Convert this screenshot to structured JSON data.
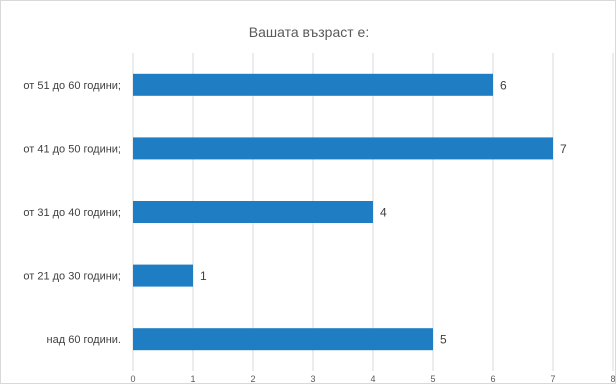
{
  "chart_data": {
    "type": "bar",
    "orientation": "horizontal",
    "title": "Вашата възраст е:",
    "categories": [
      "от 51 до 60 години;",
      "от 41 до 50 години;",
      "от 31 до 40 години;",
      "от 21 до 30 години;",
      "над 60 години."
    ],
    "values": [
      6,
      7,
      4,
      1,
      5
    ],
    "xlim": [
      0,
      8
    ],
    "xticks": [
      "0",
      "1",
      "2",
      "3",
      "4",
      "5",
      "6",
      "7",
      "8"
    ],
    "grid": true,
    "legend": "none",
    "data_labels": true
  },
  "colors": {
    "bar": "#1f7dc4",
    "grid": "#d9d9d9",
    "text": "#404040"
  }
}
